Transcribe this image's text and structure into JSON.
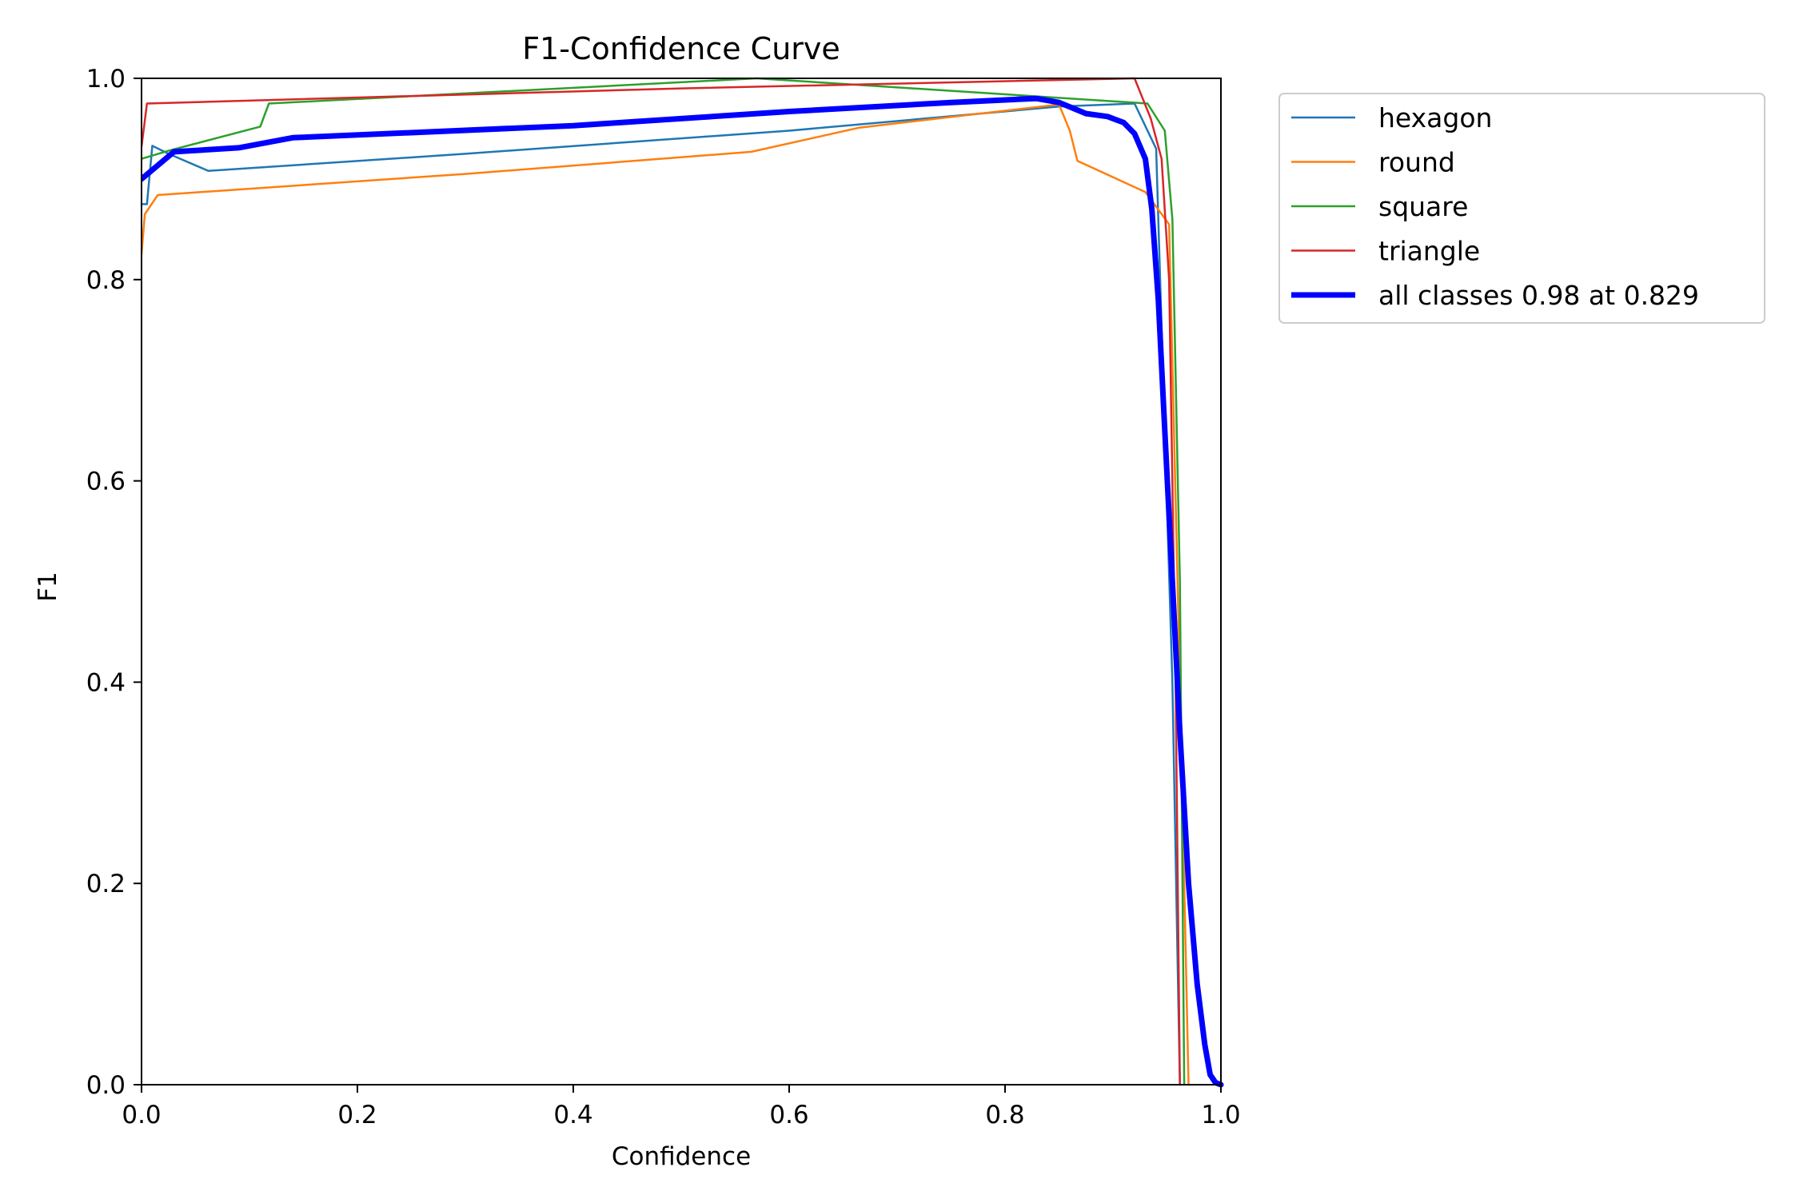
{
  "chart_data": {
    "type": "line",
    "title": "F1-Confidence Curve",
    "xlabel": "Confidence",
    "ylabel": "F1",
    "xlim": [
      0,
      1
    ],
    "ylim": [
      0,
      1
    ],
    "xticks": [
      "0.0",
      "0.2",
      "0.4",
      "0.6",
      "0.8",
      "1.0"
    ],
    "yticks": [
      "0.0",
      "0.2",
      "0.4",
      "0.6",
      "0.8",
      "1.0"
    ],
    "grid": false,
    "legend_position": "outside-top-right",
    "series": [
      {
        "name": "hexagon",
        "color": "#1f77b4",
        "width": 2.5,
        "points": [
          [
            0,
            0.875
          ],
          [
            0.005,
            0.875
          ],
          [
            0.01,
            0.933
          ],
          [
            0.025,
            0.925
          ],
          [
            0.062,
            0.908
          ],
          [
            0.3,
            0.925
          ],
          [
            0.6,
            0.948
          ],
          [
            0.85,
            0.972
          ],
          [
            0.92,
            0.975
          ],
          [
            0.94,
            0.93
          ],
          [
            0.955,
            0.4
          ],
          [
            0.962,
            0
          ]
        ]
      },
      {
        "name": "round",
        "color": "#ff7f0e",
        "width": 2.5,
        "points": [
          [
            0,
            0.825
          ],
          [
            0.003,
            0.865
          ],
          [
            0.015,
            0.884
          ],
          [
            0.3,
            0.905
          ],
          [
            0.565,
            0.927
          ],
          [
            0.665,
            0.951
          ],
          [
            0.85,
            0.974
          ],
          [
            0.86,
            0.948
          ],
          [
            0.867,
            0.918
          ],
          [
            0.93,
            0.887
          ],
          [
            0.952,
            0.855
          ],
          [
            0.962,
            0.4
          ],
          [
            0.97,
            0
          ]
        ]
      },
      {
        "name": "square",
        "color": "#2ca02c",
        "width": 2.5,
        "points": [
          [
            0,
            0.92
          ],
          [
            0.025,
            0.928
          ],
          [
            0.11,
            0.952
          ],
          [
            0.118,
            0.975
          ],
          [
            0.57,
            1.0
          ],
          [
            0.932,
            0.975
          ],
          [
            0.948,
            0.948
          ],
          [
            0.955,
            0.86
          ],
          [
            0.962,
            0.5
          ],
          [
            0.966,
            0
          ]
        ]
      },
      {
        "name": "triangle",
        "color": "#d62728",
        "width": 2.5,
        "points": [
          [
            0,
            0.932
          ],
          [
            0.005,
            0.975
          ],
          [
            0.5,
            0.99
          ],
          [
            0.92,
            1.0
          ],
          [
            0.935,
            0.96
          ],
          [
            0.945,
            0.92
          ],
          [
            0.952,
            0.8
          ],
          [
            0.958,
            0.4
          ],
          [
            0.962,
            0
          ]
        ]
      },
      {
        "name": "all classes 0.98 at 0.829",
        "color": "#0000ff",
        "width": 7,
        "points": [
          [
            0,
            0.9
          ],
          [
            0.03,
            0.927
          ],
          [
            0.09,
            0.931
          ],
          [
            0.14,
            0.941
          ],
          [
            0.4,
            0.953
          ],
          [
            0.6,
            0.967
          ],
          [
            0.75,
            0.976
          ],
          [
            0.829,
            0.98
          ],
          [
            0.85,
            0.976
          ],
          [
            0.875,
            0.965
          ],
          [
            0.895,
            0.962
          ],
          [
            0.91,
            0.956
          ],
          [
            0.92,
            0.945
          ],
          [
            0.93,
            0.92
          ],
          [
            0.936,
            0.87
          ],
          [
            0.942,
            0.78
          ],
          [
            0.948,
            0.65
          ],
          [
            0.955,
            0.5
          ],
          [
            0.962,
            0.35
          ],
          [
            0.97,
            0.2
          ],
          [
            0.978,
            0.1
          ],
          [
            0.985,
            0.04
          ],
          [
            0.99,
            0.01
          ],
          [
            0.995,
            0.002
          ],
          [
            1.0,
            0
          ]
        ]
      }
    ]
  }
}
